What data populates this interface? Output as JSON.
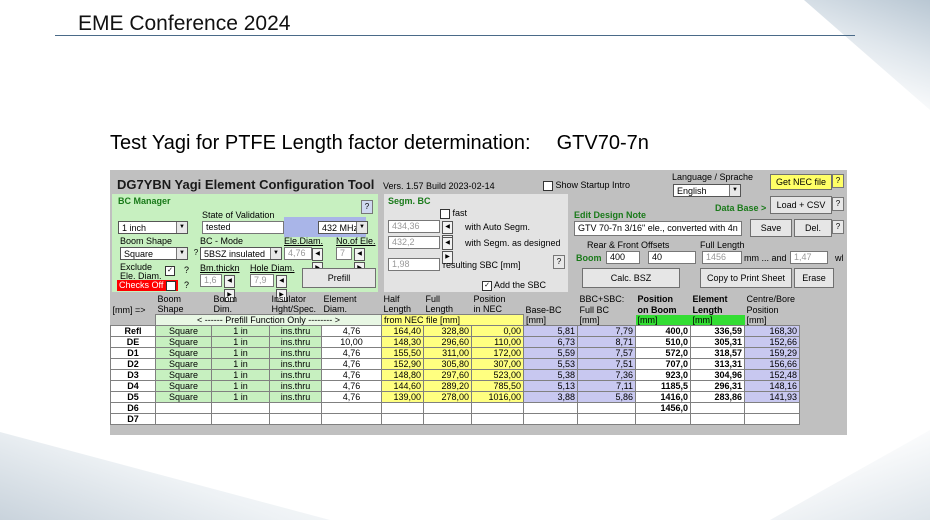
{
  "slide": {
    "conference": "EME Conference 2024",
    "title": "Test Yagi for PTFE Length factor determination:",
    "code": "GTV70-7n"
  },
  "app": {
    "title": "DG7YBN Yagi Element Configuration Tool",
    "version": "Vers. 1.57 Build 2023-02-14",
    "show_startup": "Show Startup Intro",
    "language_label": "Language / Sprache",
    "language_value": "English",
    "get_nec": "Get NEC file",
    "database_label": "Data Base >",
    "load_csv": "Load + CSV",
    "help": "?"
  },
  "bc_manager": {
    "label": "BC Manager",
    "state_label": "State of Validation",
    "boom_size": "1 inch",
    "state_value": "tested",
    "freq": "432 MHz",
    "boom_shape_label": "Boom Shape",
    "bc_mode_label": "BC - Mode",
    "ele_diam_label": "Ele.Diam.",
    "no_ele_label": "No.of Ele.",
    "boom_shape": "Square",
    "bc_mode": "5BSZ insulated",
    "ele_diam": "4,76",
    "no_ele": "7",
    "exclude_label": "Exclude",
    "ele_diam_short": "Ele. Diam.",
    "bm_thick_label": "Bm.thickn",
    "hole_diam_label": "Hole Diam.",
    "bm_thick": "1,6",
    "hole_diam": "7,9",
    "checks_off": "Checks Off",
    "prefill": "Prefill"
  },
  "segm": {
    "label": "Segm. BC",
    "fast": "fast",
    "val1": "434,36",
    "with_auto": "with Auto Segm.",
    "val2": "432,2",
    "with_segm": "with Segm. as designed",
    "val3": "1,98",
    "resulting": "resulting SBC [mm]",
    "add_sbc": "Add the SBC"
  },
  "design": {
    "label": "Edit Design Note",
    "note": "GTV 70-7n 3/16\" ele., converted with 4n",
    "save": "Save",
    "del": "Del.",
    "offsets_label": "Rear & Front Offsets",
    "full_length_label": "Full Length",
    "boom_label": "Boom",
    "rear": "400",
    "front": "40",
    "full_length": "1456",
    "mm_and": "mm ... and",
    "wl_val": "1,47",
    "wl": "wl",
    "calc": "Calc. BSZ",
    "copy": "Copy to Print Sheet",
    "erase": "Erase"
  },
  "table": {
    "headers": [
      [
        "[mm] =>",
        ""
      ],
      [
        "Boom",
        "Shape"
      ],
      [
        "Boom",
        "Dim."
      ],
      [
        "Insulator",
        "Hght/Spec."
      ],
      [
        "Element",
        "Diam."
      ],
      [
        "Half",
        "Length"
      ],
      [
        "Full",
        "Length"
      ],
      [
        "Position",
        "in NEC"
      ],
      [
        "",
        "Base-BC"
      ],
      [
        "BBC+SBC:",
        "Full BC"
      ],
      [
        "Position",
        "on Boom"
      ],
      [
        "Element",
        "Length"
      ],
      [
        "Centre/Bore",
        "Position"
      ]
    ],
    "prefill_note": "< ------ Prefill Function Only -------- >",
    "from_nec": "from NEC file [mm]",
    "mm": "[mm]",
    "rows": [
      [
        "Refl",
        "Square",
        "1 in",
        "ins.thru",
        "4,76",
        "164,40",
        "328,80",
        "0,00",
        "5,81",
        "7,79",
        "400,0",
        "336,59",
        "168,30"
      ],
      [
        "DE",
        "Square",
        "1 in",
        "ins.thru",
        "10,00",
        "148,30",
        "296,60",
        "110,00",
        "6,73",
        "8,71",
        "510,0",
        "305,31",
        "152,66"
      ],
      [
        "D1",
        "Square",
        "1 in",
        "ins.thru",
        "4,76",
        "155,50",
        "311,00",
        "172,00",
        "5,59",
        "7,57",
        "572,0",
        "318,57",
        "159,29"
      ],
      [
        "D2",
        "Square",
        "1 in",
        "ins.thru",
        "4,76",
        "152,90",
        "305,80",
        "307,00",
        "5,53",
        "7,51",
        "707,0",
        "313,31",
        "156,66"
      ],
      [
        "D3",
        "Square",
        "1 in",
        "ins.thru",
        "4,76",
        "148,80",
        "297,60",
        "523,00",
        "5,38",
        "7,36",
        "923,0",
        "304,96",
        "152,48"
      ],
      [
        "D4",
        "Square",
        "1 in",
        "ins.thru",
        "4,76",
        "144,60",
        "289,20",
        "785,50",
        "5,13",
        "7,11",
        "1185,5",
        "296,31",
        "148,16"
      ],
      [
        "D5",
        "Square",
        "1 in",
        "ins.thru",
        "4,76",
        "139,00",
        "278,00",
        "1016,00",
        "3,88",
        "5,86",
        "1416,0",
        "283,86",
        "141,93"
      ],
      [
        "D6",
        "",
        "",
        "",
        "",
        "",
        "",
        "",
        "",
        "",
        "1456,0",
        "",
        ""
      ],
      [
        "D7",
        "",
        "",
        "",
        "",
        "",
        "",
        "",
        "",
        "",
        "",
        "",
        ""
      ]
    ]
  }
}
